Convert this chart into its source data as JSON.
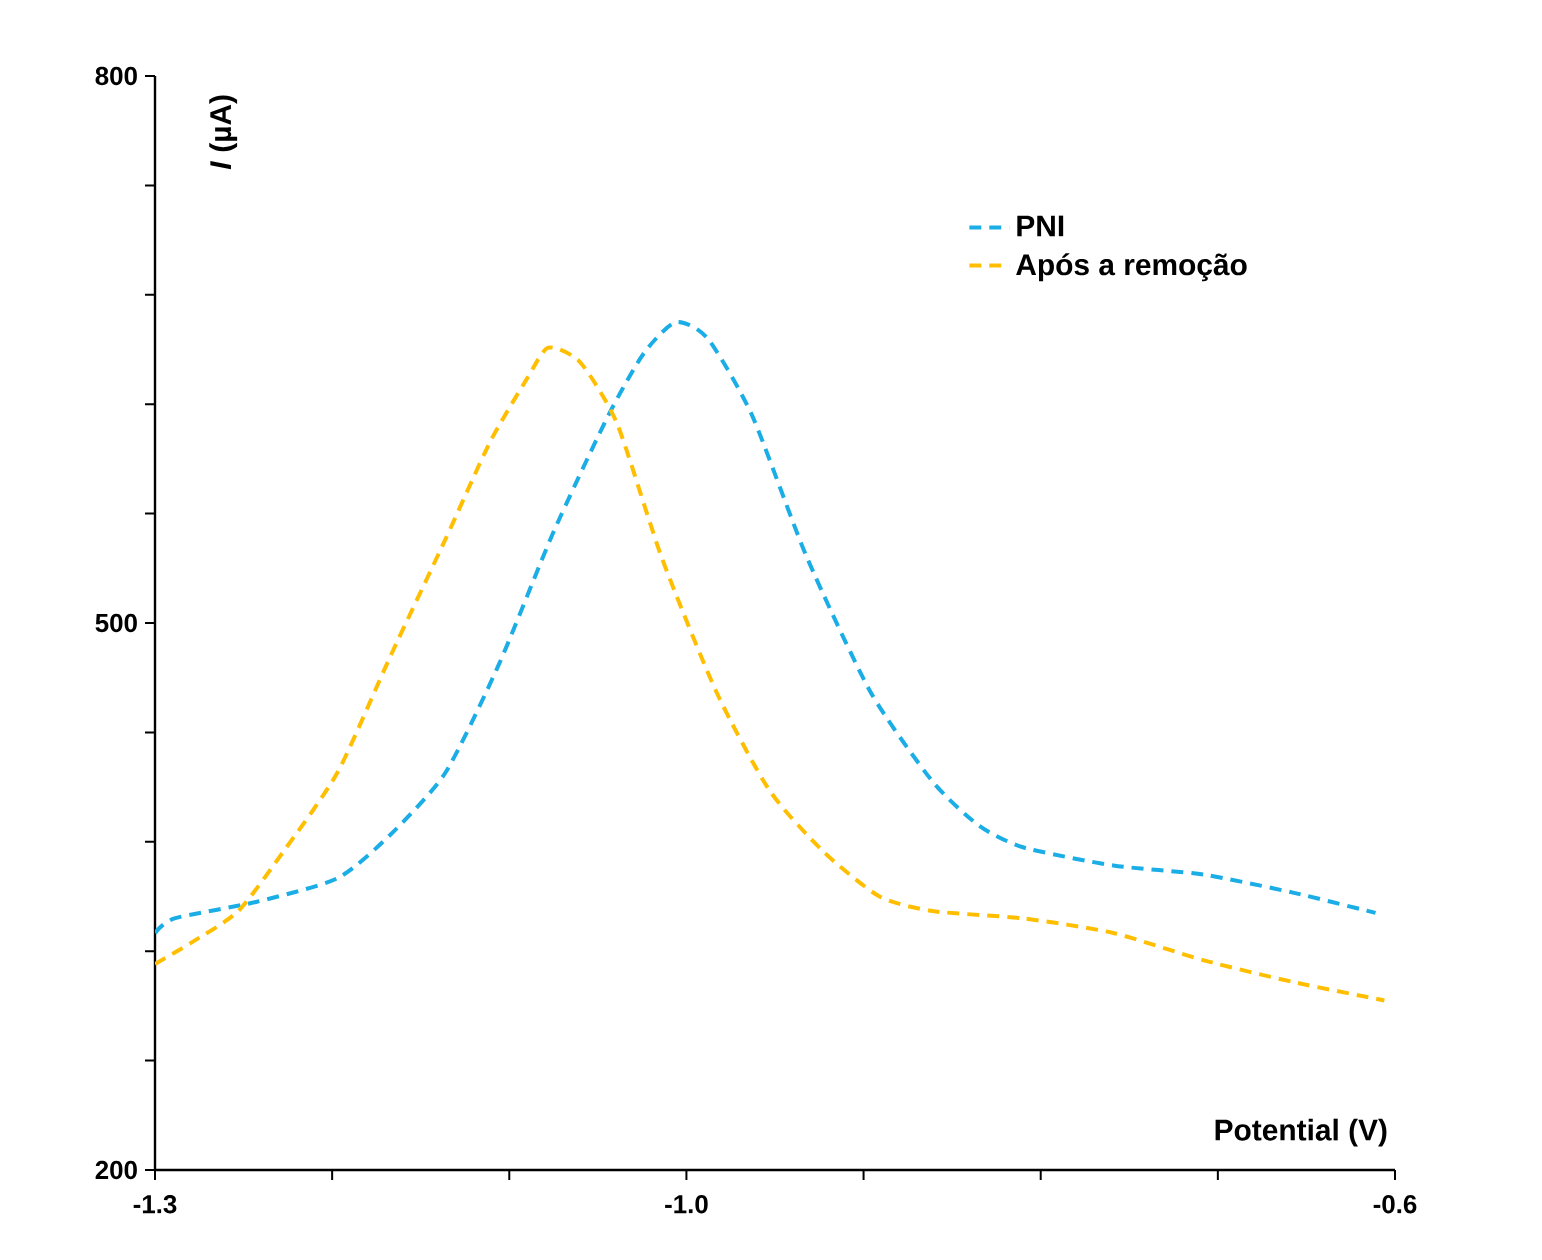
{
  "chart_data": {
    "type": "line",
    "xlabel": "Potential (V)",
    "ylabel": "*I* (µA)",
    "xlim": [
      -1.3,
      -0.6
    ],
    "ylim": [
      200,
      800
    ],
    "xticks": [
      -1.3,
      {
        "value": -1.2,
        "label": null
      },
      {
        "value": -1.1,
        "label": null
      },
      {
        "value": -1.0,
        "label": "-1.0"
      },
      {
        "value": -0.9,
        "label": null
      },
      {
        "value": -0.8,
        "label": null
      },
      {
        "value": -0.7,
        "label": null
      },
      -0.6
    ],
    "yticks": [
      200,
      {
        "value": 260,
        "label": null
      },
      {
        "value": 320,
        "label": null
      },
      {
        "value": 380,
        "label": null
      },
      {
        "value": 440,
        "label": null
      },
      500,
      {
        "value": 560,
        "label": null
      },
      {
        "value": 620,
        "label": null
      },
      {
        "value": 680,
        "label": null
      },
      {
        "value": 740,
        "label": null
      },
      800
    ],
    "legend": "top right",
    "line_style": "dashed",
    "marker": "none",
    "grid": false,
    "series": [
      {
        "name": "PNI",
        "color": "#1aade6",
        "x": [
          -1.3,
          -1.289,
          -1.243,
          -1.197,
          -1.167,
          -1.136,
          -1.106,
          -1.075,
          -1.044,
          -1.024,
          -1.006,
          -0.988,
          -0.963,
          -0.932,
          -0.896,
          -0.861,
          -0.835,
          -0.81,
          -0.759,
          -0.708,
          -0.657,
          -0.611
        ],
        "values": [
          330,
          338,
          347,
          360,
          384,
          418,
          477,
          550,
          614,
          648,
          665,
          656,
          614,
          536,
          462,
          413,
          389,
          377,
          367,
          362,
          352,
          341
        ]
      },
      {
        "name": "Após a remoção",
        "color": "#ffbf00",
        "x": [
          -1.3,
          -1.279,
          -1.253,
          -1.228,
          -1.197,
          -1.167,
          -1.136,
          -1.111,
          -1.09,
          -1.078,
          -1.06,
          -1.039,
          -1.014,
          -0.983,
          -0.953,
          -0.922,
          -0.891,
          -0.861,
          -0.81,
          -0.759,
          -0.708,
          -0.657,
          -0.606
        ],
        "values": [
          313,
          325,
          342,
          374,
          418,
          482,
          546,
          599,
          634,
          651,
          643,
          609,
          536,
          462,
          408,
          374,
          350,
          342,
          338,
          330,
          315,
          303,
          293
        ]
      }
    ]
  }
}
